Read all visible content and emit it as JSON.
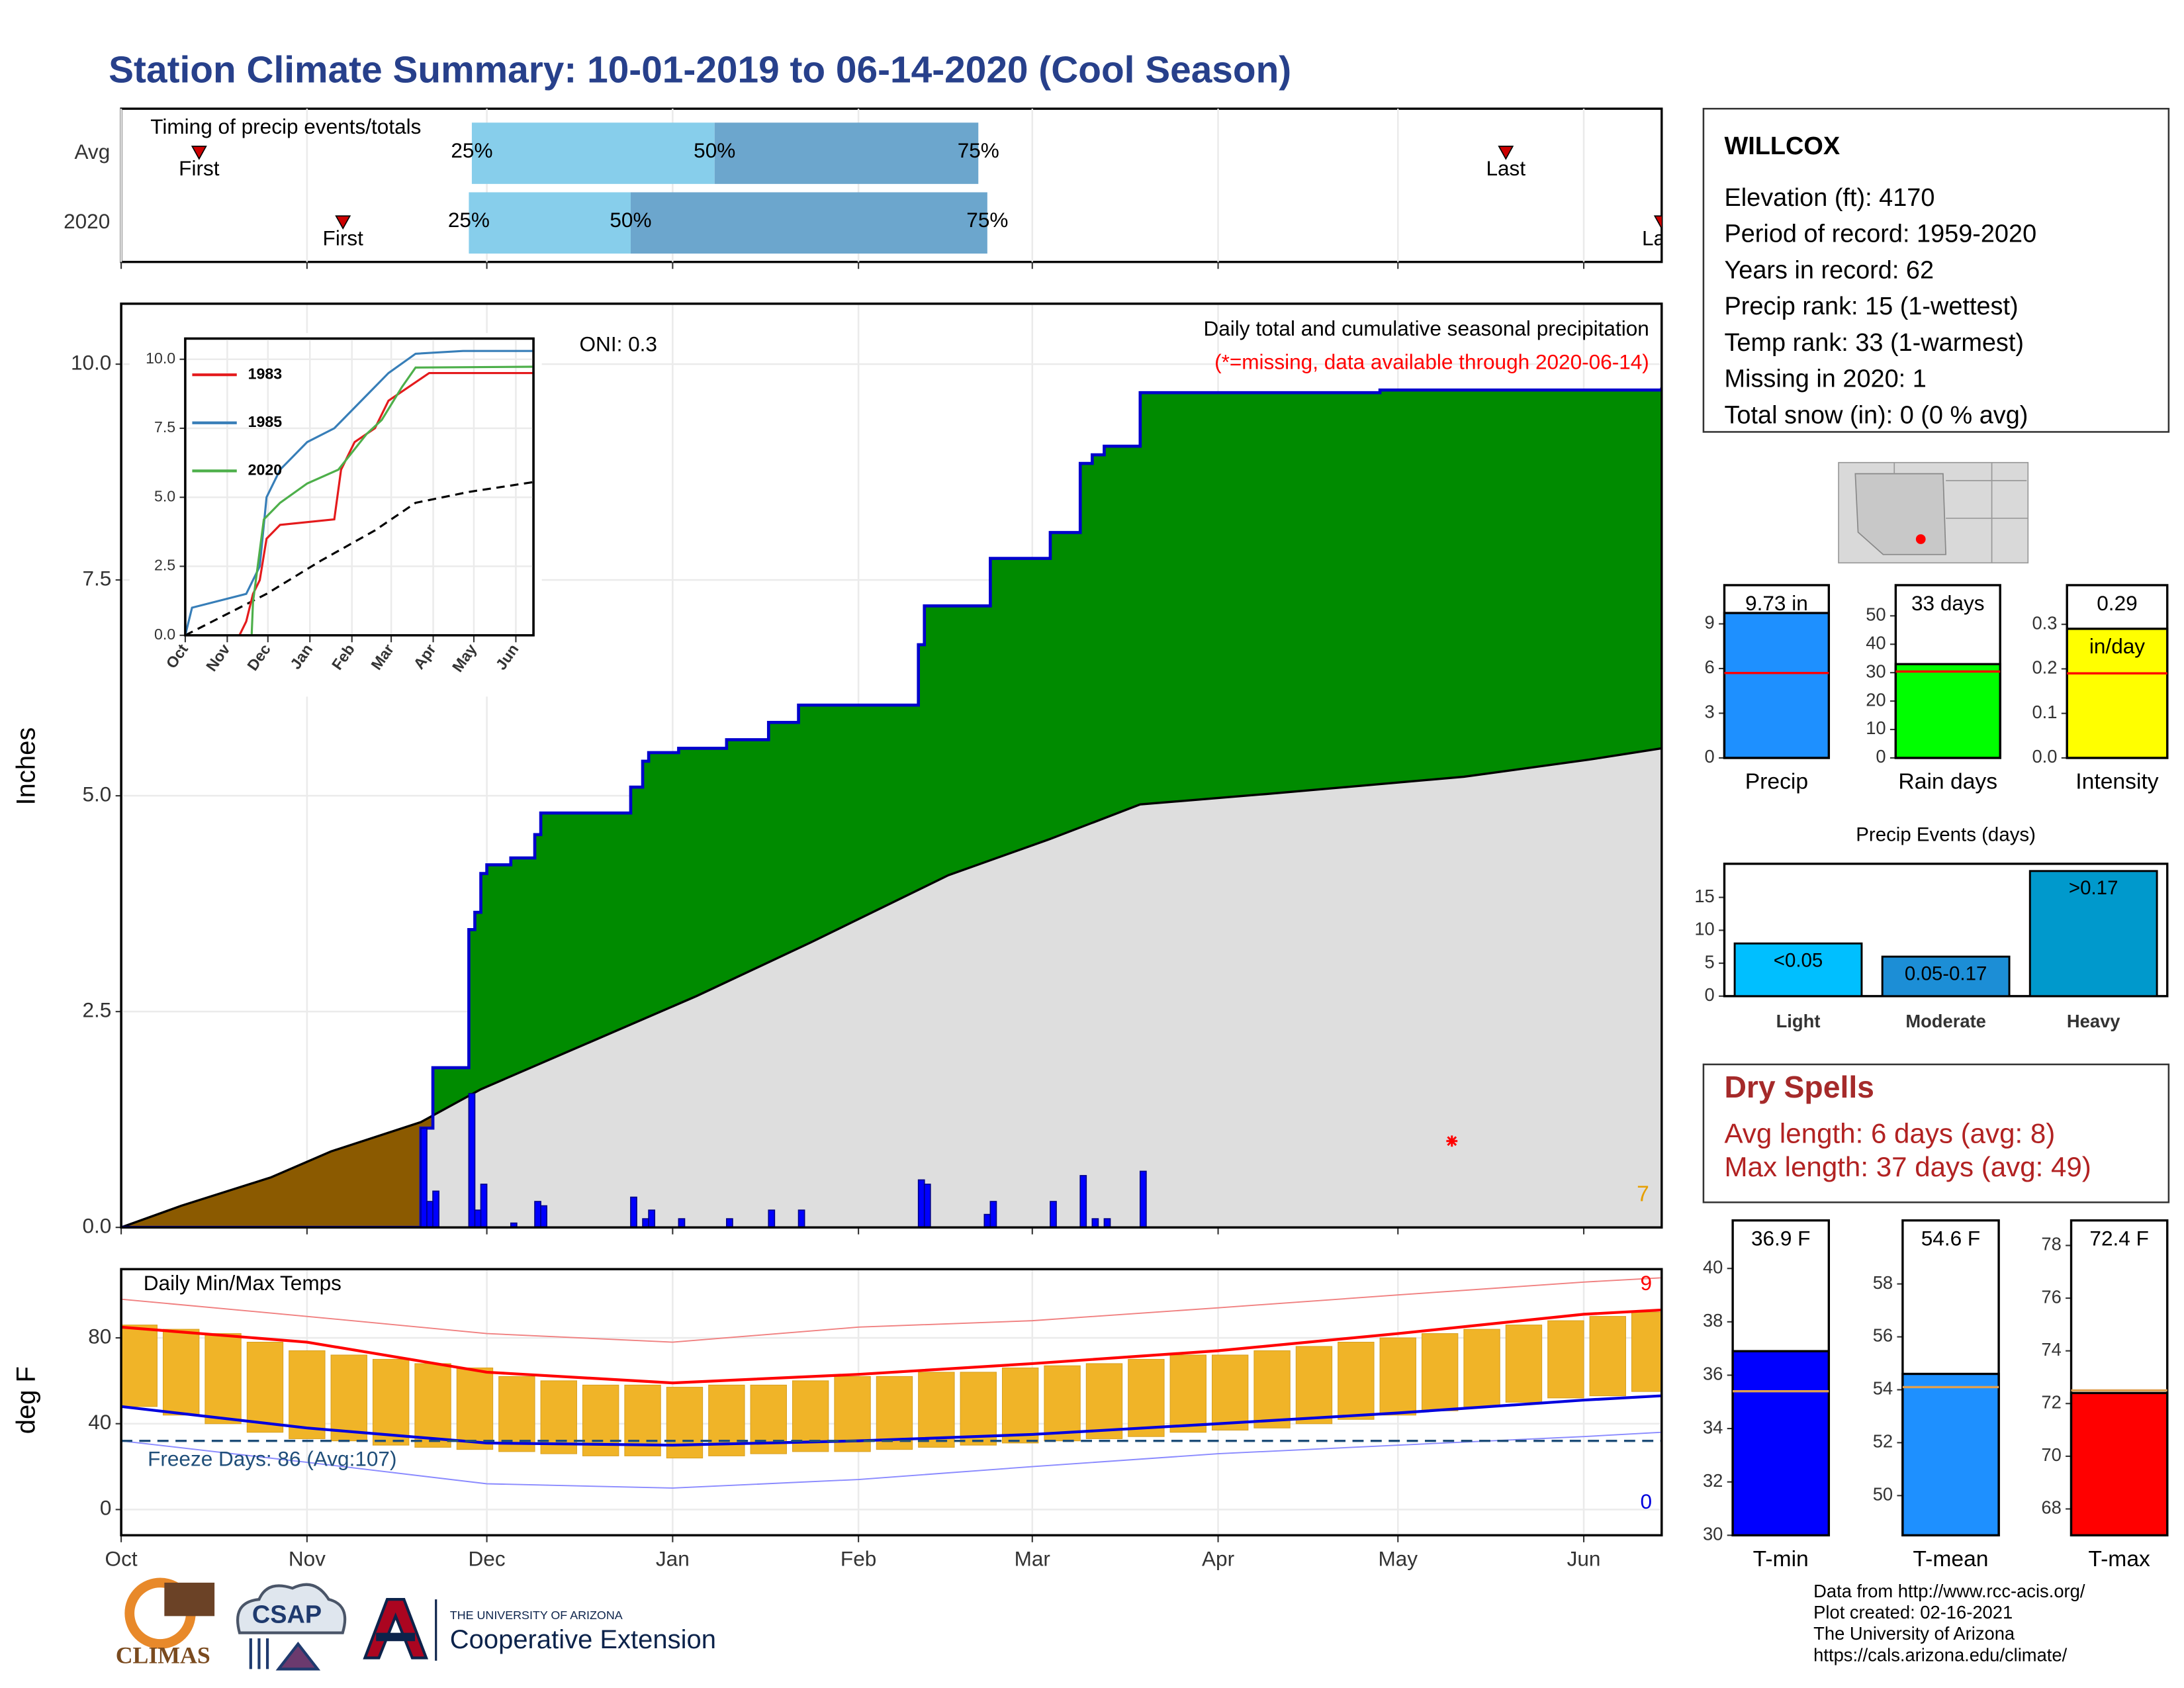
{
  "title": "Station Climate Summary: 10-01-2019 to 06-14-2020 (Cool Season)",
  "station": {
    "name": "WILLCOX",
    "lines": [
      "Elevation (ft): 4170",
      "Period of record: 1959-2020",
      "Years in record: 62",
      "Precip rank: 15 (1-wettest)",
      "Temp rank: 33 (1-warmest)",
      "Missing in 2020: 1",
      "Total snow (in): 0 (0 % avg)"
    ]
  },
  "dry_spells": {
    "title": "Dry Spells",
    "lines": [
      "Avg length: 6 days (avg: 8)",
      "Max length: 37 days (avg: 49)"
    ]
  },
  "footer": [
    "Data from http://www.rcc-acis.org/",
    "Plot created: 02-16-2021",
    "The University of Arizona",
    "https://cals.arizona.edu/climate/"
  ],
  "logos": {
    "climas": "CLIMAS",
    "csap": "CSAP",
    "university": "THE UNIVERSITY OF ARIZONA",
    "extension": "Cooperative Extension"
  },
  "chart_data": [
    {
      "type": "timing",
      "title": "Timing of precip events/totals",
      "rows": [
        "Avg",
        "2020"
      ],
      "first": [
        13,
        37
      ],
      "p25": [
        58.5,
        58
      ],
      "p50": [
        99,
        85
      ],
      "p75": [
        143,
        144.5
      ],
      "last": [
        231,
        257
      ],
      "first_label": "First",
      "last_label": "Last",
      "p25_label": "25%",
      "p50_label": "50%",
      "p75_label": "75%",
      "colors": [
        "#87ceeb",
        "#6ca6cd"
      ],
      "marker_color": "#cc0000",
      "xlim": [
        0,
        257
      ],
      "xticks": [
        0,
        31,
        61,
        92,
        123,
        152,
        183,
        213,
        244
      ]
    },
    {
      "type": "cumulative",
      "title": "Daily total and cumulative seasonal precipitation",
      "subtitle": "(*=missing, data available through 2020-06-14)",
      "annotation": "ONI: 0.3",
      "count_label": "7",
      "ylabel": "Inches",
      "xlim": [
        0,
        257
      ],
      "ylim": [
        0,
        10.7
      ],
      "xticks": [
        0,
        31,
        61,
        92,
        123,
        152,
        183,
        213,
        244
      ],
      "yticks": [
        {
          "value": 0,
          "label": "0.0"
        },
        {
          "value": 2.5,
          "label": "2.5"
        },
        {
          "value": 5,
          "label": "5.0"
        },
        {
          "value": 7.5,
          "label": "7.5"
        },
        {
          "value": 10,
          "label": "10.0"
        }
      ],
      "grid": true,
      "cumulative": {
        "color": "#0000cd",
        "fill": "#008b00",
        "below_fill": "#8b5a00",
        "x": [
          0,
          50,
          52,
          58,
          59,
          60,
          61,
          65,
          69,
          70,
          85,
          87,
          88,
          93,
          101,
          108,
          113,
          133,
          134,
          145,
          155,
          160,
          162,
          164,
          170,
          210,
          257
        ],
        "values": [
          0,
          1.15,
          1.85,
          3.45,
          3.65,
          4.1,
          4.2,
          4.28,
          4.55,
          4.8,
          5.1,
          5.4,
          5.5,
          5.55,
          5.65,
          5.85,
          6.05,
          6.75,
          7.2,
          7.75,
          8.05,
          8.85,
          8.95,
          9.05,
          9.67,
          9.7,
          9.73
        ]
      },
      "average": {
        "color": "#000000",
        "fill": "#dedede",
        "x": [
          0,
          10,
          25,
          35,
          50,
          60,
          75,
          96,
          115,
          138,
          155,
          170,
          191,
          224,
          245,
          257
        ],
        "values": [
          0,
          0.25,
          0.58,
          0.88,
          1.22,
          1.6,
          2.05,
          2.68,
          3.3,
          4.08,
          4.5,
          4.9,
          5.02,
          5.22,
          5.42,
          5.55
        ]
      },
      "daily": {
        "color": "#0000ff",
        "x": [
          50,
          51,
          52,
          58,
          59,
          60,
          65,
          69,
          70,
          85,
          87,
          88,
          93,
          101,
          108,
          113,
          133,
          134,
          144,
          145,
          155,
          160,
          162,
          164,
          170
        ],
        "values": [
          1.15,
          0.3,
          0.42,
          1.55,
          0.2,
          0.5,
          0.05,
          0.3,
          0.25,
          0.35,
          0.1,
          0.2,
          0.1,
          0.1,
          0.2,
          0.2,
          0.55,
          0.5,
          0.15,
          0.3,
          0.3,
          0.6,
          0.1,
          0.1,
          0.65
        ]
      },
      "missing": {
        "color": "#ff0000",
        "x": [
          222
        ],
        "values": [
          1.0
        ]
      },
      "count_color": "#e69f00",
      "subtitle_color": "#ff0000"
    },
    {
      "type": "line",
      "xlim": [
        0,
        257
      ],
      "ylim": [
        0,
        10.75
      ],
      "xticks": [
        {
          "value": 0,
          "label": "Oct"
        },
        {
          "value": 31,
          "label": "Nov"
        },
        {
          "value": 61,
          "label": "Dec"
        },
        {
          "value": 92,
          "label": "Jan"
        },
        {
          "value": 123,
          "label": "Feb"
        },
        {
          "value": 152,
          "label": "Mar"
        },
        {
          "value": 183,
          "label": "Apr"
        },
        {
          "value": 213,
          "label": "May"
        },
        {
          "value": 244,
          "label": "Jun"
        }
      ],
      "yticks": [
        {
          "value": 0,
          "label": "0.0"
        },
        {
          "value": 2.5,
          "label": "2.5"
        },
        {
          "value": 5,
          "label": "5.0"
        },
        {
          "value": 7.5,
          "label": "7.5"
        },
        {
          "value": 10,
          "label": "10.0"
        }
      ],
      "grid": true,
      "series": [
        {
          "name": "1983",
          "color": "#e41a1c",
          "x": [
            0,
            40,
            45,
            50,
            55,
            60,
            70,
            110,
            115,
            125,
            140,
            150,
            165,
            180,
            257
          ],
          "values": [
            0,
            0,
            0.5,
            1.5,
            2.0,
            3.5,
            4.0,
            4.2,
            6.0,
            7.0,
            7.5,
            8.5,
            9.0,
            9.5,
            9.5
          ]
        },
        {
          "name": "1985",
          "color": "#377eb8",
          "x": [
            0,
            5,
            45,
            55,
            60,
            70,
            90,
            110,
            130,
            150,
            170,
            205,
            257
          ],
          "values": [
            0,
            1.0,
            1.5,
            2.5,
            5.0,
            6.0,
            7.0,
            7.5,
            8.5,
            9.5,
            10.2,
            10.3,
            10.3
          ]
        },
        {
          "name": "2020",
          "color": "#4daf4a",
          "x": [
            0,
            49,
            50,
            58,
            70,
            90,
            113,
            134,
            145,
            160,
            170,
            257
          ],
          "values": [
            0,
            0,
            1.2,
            4.2,
            4.8,
            5.5,
            6.0,
            7.3,
            7.8,
            9.0,
            9.7,
            9.73
          ]
        }
      ],
      "average": {
        "color": "#000000",
        "x": [
          0,
          60,
          100,
          140,
          170,
          210,
          257
        ],
        "values": [
          0,
          1.5,
          2.7,
          3.8,
          4.8,
          5.2,
          5.55
        ]
      }
    },
    {
      "type": "temperature",
      "title": "Daily Min/Max Temps",
      "ylabel": "deg F",
      "xlim": [
        0,
        257
      ],
      "ylim": [
        -12,
        112
      ],
      "xticks": [
        {
          "value": 0,
          "label": "Oct"
        },
        {
          "value": 31,
          "label": "Nov"
        },
        {
          "value": 61,
          "label": "Dec"
        },
        {
          "value": 92,
          "label": "Jan"
        },
        {
          "value": 123,
          "label": "Feb"
        },
        {
          "value": 152,
          "label": "Mar"
        },
        {
          "value": 183,
          "label": "Apr"
        },
        {
          "value": 213,
          "label": "May"
        },
        {
          "value": 244,
          "label": "Jun"
        }
      ],
      "yticks": [
        0,
        40,
        80
      ],
      "grid": true,
      "daily": {
        "color": "#f0b428",
        "x": [
          0,
          7,
          14,
          21,
          28,
          35,
          42,
          49,
          56,
          63,
          70,
          77,
          84,
          91,
          98,
          105,
          112,
          119,
          126,
          133,
          140,
          147,
          154,
          161,
          168,
          175,
          182,
          189,
          196,
          203,
          210,
          217,
          224,
          231,
          238,
          245,
          252
        ],
        "min": [
          48,
          44,
          40,
          36,
          33,
          32,
          30,
          29,
          28,
          27,
          26,
          25,
          25,
          24,
          25,
          26,
          27,
          27,
          28,
          29,
          30,
          31,
          32,
          33,
          34,
          36,
          37,
          38,
          40,
          42,
          44,
          46,
          48,
          50,
          52,
          53,
          55
        ],
        "max": [
          86,
          84,
          82,
          78,
          74,
          72,
          70,
          68,
          66,
          62,
          60,
          58,
          58,
          57,
          58,
          58,
          60,
          62,
          62,
          64,
          64,
          66,
          67,
          68,
          70,
          72,
          72,
          74,
          76,
          78,
          80,
          82,
          84,
          86,
          88,
          90,
          92
        ]
      },
      "avg_max": {
        "color": "#ff0000",
        "x": [
          0,
          31,
          61,
          92,
          123,
          152,
          183,
          213,
          244,
          257
        ],
        "values": [
          85,
          78,
          64,
          59,
          63,
          68,
          74,
          82,
          91,
          93
        ]
      },
      "avg_min": {
        "color": "#0000dd",
        "x": [
          0,
          31,
          61,
          92,
          123,
          152,
          183,
          213,
          244,
          257
        ],
        "values": [
          48,
          38,
          31,
          30,
          32,
          35,
          40,
          45,
          51,
          53
        ]
      },
      "record_max": {
        "color": "#f08080",
        "x": [
          0,
          31,
          61,
          92,
          123,
          152,
          183,
          213,
          244,
          257
        ],
        "values": [
          98,
          90,
          82,
          78,
          85,
          88,
          94,
          100,
          106,
          108
        ]
      },
      "record_min": {
        "color": "#8a8aff",
        "x": [
          0,
          31,
          61,
          92,
          123,
          152,
          183,
          213,
          244,
          257
        ],
        "values": [
          32,
          22,
          12,
          10,
          14,
          20,
          26,
          30,
          34,
          36
        ]
      },
      "freeze": {
        "value": 32,
        "label": "Freeze Days: 86 (Avg:107)",
        "color": "#1f4e79"
      },
      "high_count": {
        "label": "9",
        "color": "#ff0000"
      },
      "low_count": {
        "label": "0",
        "color": "#0000dd"
      }
    },
    {
      "type": "gauge",
      "categories": [
        "Precip"
      ],
      "values": [
        9.73
      ],
      "value_labels": [
        "9.73 in"
      ],
      "average": 5.7,
      "avg_color": "#ff0000",
      "color": "#1e90ff",
      "ylim": [
        0,
        11.6
      ],
      "yticks": [
        0,
        3,
        6,
        9
      ]
    },
    {
      "type": "gauge",
      "categories": [
        "Rain days"
      ],
      "values": [
        33
      ],
      "value_labels": [
        "33 days"
      ],
      "average": 30.4,
      "avg_color": "#ff0000",
      "color": "#00ff00",
      "ylim": [
        0,
        60.8
      ],
      "yticks": [
        0,
        10,
        20,
        30,
        40,
        50
      ]
    },
    {
      "type": "gauge",
      "categories": [
        "Intensity"
      ],
      "values": [
        0.29
      ],
      "value_labels": [
        "0.29"
      ],
      "unit": "in/day",
      "average": 0.19,
      "avg_color": "#ff0000",
      "color": "#ffff00",
      "ylim": [
        0,
        0.388
      ],
      "yticks": [
        {
          "value": 0,
          "label": "0.0"
        },
        0.1,
        0.2,
        0.3
      ]
    },
    {
      "type": "bar",
      "title": "Precip Events (days)",
      "categories": [
        "Light",
        "Moderate",
        "Heavy"
      ],
      "values": [
        8,
        6,
        19
      ],
      "bar_labels": [
        "<0.05",
        "0.05-0.17",
        ">0.17"
      ],
      "colors": [
        "#00bfff",
        "#1c8ed6",
        "#0099cc"
      ],
      "ylim": [
        0,
        20.1
      ],
      "yticks": [
        0,
        5,
        10,
        15
      ]
    },
    {
      "type": "gauge",
      "categories": [
        "T-min"
      ],
      "values": [
        36.9
      ],
      "value_labels": [
        "36.9 F"
      ],
      "average": 35.4,
      "avg_color": "#e0a050",
      "color": "#0000ff",
      "ylim": [
        30,
        41.8
      ],
      "yticks": [
        30,
        32,
        34,
        36,
        38,
        40
      ]
    },
    {
      "type": "gauge",
      "categories": [
        "T-mean"
      ],
      "values": [
        54.6
      ],
      "value_labels": [
        "54.6 F"
      ],
      "average": 54.1,
      "avg_color": "#e0a050",
      "color": "#1e90ff",
      "ylim": [
        48.5,
        60.4
      ],
      "yticks": [
        50,
        52,
        54,
        56,
        58
      ]
    },
    {
      "type": "gauge",
      "categories": [
        "T-max"
      ],
      "values": [
        72.4
      ],
      "value_labels": [
        "72.4 F"
      ],
      "average": 72.5,
      "avg_color": "#e0a050",
      "color": "#ff0000",
      "ylim": [
        67,
        78.95
      ],
      "yticks": [
        68,
        70,
        72,
        74,
        76,
        78
      ]
    }
  ]
}
